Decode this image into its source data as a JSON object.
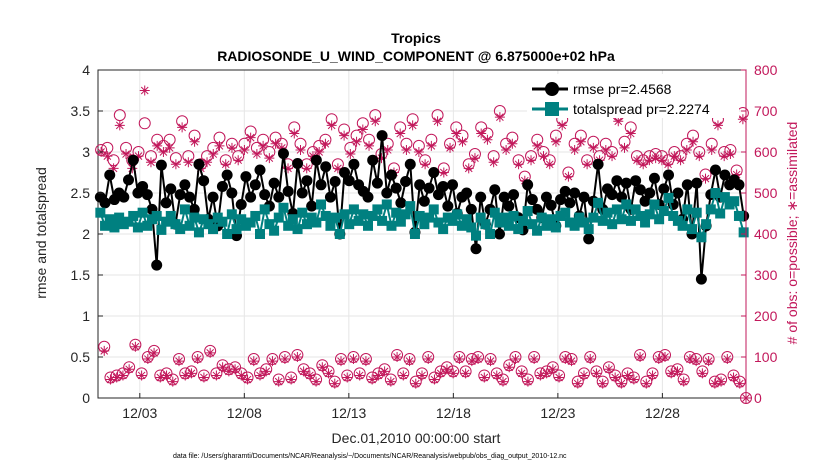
{
  "chart_data": {
    "type": "line",
    "title": "Tropics",
    "subtitle": "RADIOSONDE_U_WIND_COMPONENT @ 6.875000e+02 hPa",
    "xlabel": "Dec.01,2010 00:00:00 start",
    "ylabel_left": "rmse and totalspread",
    "ylabel_right": "# of obs: o=possible; ∗=assimilated",
    "footer": "data file: /Users/gharamti/Documents/NCAR/Reanalysis/~/Documents/NCAR/Reanalysis/webpub/obs_diag_output_2010-12.nc",
    "xlim": [
      1,
      32
    ],
    "ylim_left": [
      0,
      4
    ],
    "ylim_right": [
      0,
      800
    ],
    "x_ticks": [
      3,
      8,
      13,
      18,
      23,
      28
    ],
    "x_tick_labels": [
      "12/03",
      "12/08",
      "12/13",
      "12/18",
      "12/23",
      "12/28"
    ],
    "y_ticks_left": [
      0,
      0.5,
      1,
      1.5,
      2,
      2.5,
      3,
      3.5,
      4
    ],
    "y_tick_labels_left": [
      "0",
      "0.5",
      "1",
      "1.5",
      "2",
      "2.5",
      "3",
      "3.5",
      "4"
    ],
    "y_ticks_right": [
      0,
      100,
      200,
      300,
      400,
      500,
      600,
      700,
      800
    ],
    "y_tick_labels_right": [
      "0",
      "100",
      "200",
      "300",
      "400",
      "500",
      "600",
      "700",
      "800"
    ],
    "grid": true,
    "legend_position": "top-right",
    "colors": {
      "rmse": "#000000",
      "spread": "#008080",
      "obs": "#c2185b",
      "grid": "#e6e6e6"
    },
    "series": [
      {
        "name": "rmse pr=2.4568",
        "axis": "left",
        "style": "line-marker-circle",
        "values": [
          2.45,
          2.38,
          2.72,
          2.42,
          2.5,
          2.45,
          2.66,
          2.9,
          2.5,
          2.58,
          2.48,
          2.3,
          1.62,
          2.84,
          2.38,
          2.55,
          2.12,
          2.48,
          2.6,
          2.45,
          2.3,
          2.85,
          2.65,
          2.18,
          2.45,
          2.1,
          2.58,
          2.72,
          2.5,
          1.98,
          2.36,
          2.7,
          2.45,
          2.6,
          2.78,
          2.48,
          2.34,
          2.62,
          2.45,
          2.98,
          2.52,
          2.25,
          2.86,
          2.5,
          2.65,
          2.34,
          2.9,
          2.6,
          2.82,
          2.45,
          2.64,
          2.0,
          2.75,
          2.65,
          2.85,
          2.6,
          2.52,
          2.45,
          2.9,
          2.62,
          3.2,
          2.5,
          2.72,
          2.56,
          2.38,
          2.64,
          2.85,
          2.02,
          2.6,
          2.4,
          2.56,
          2.75,
          2.48,
          2.58,
          2.34,
          2.6,
          2.25,
          2.45,
          2.5,
          2.3,
          1.82,
          2.45,
          2.12,
          2.3,
          2.54,
          2.0,
          2.45,
          2.34,
          2.48,
          2.2,
          2.05,
          2.6,
          2.42,
          2.3,
          2.2,
          2.45,
          2.35,
          2.1,
          2.42,
          2.52,
          2.38,
          2.5,
          2.22,
          2.45,
          1.94,
          2.4,
          2.85,
          2.3,
          2.55,
          2.48,
          2.65,
          2.45,
          2.62,
          2.3,
          2.65,
          2.54,
          2.4,
          2.5,
          2.68,
          2.36,
          2.55,
          2.72,
          2.36,
          2.5,
          2.18,
          2.6,
          2.0,
          2.62,
          1.45,
          2.1,
          2.48,
          2.78,
          2.45,
          2.72,
          2.6,
          2.66,
          2.6,
          2.22
        ]
      },
      {
        "name": "totalspread pr=2.2274",
        "axis": "left",
        "style": "line-marker-square",
        "values": [
          2.26,
          2.1,
          2.18,
          2.08,
          2.2,
          2.12,
          2.15,
          2.22,
          2.08,
          2.26,
          2.1,
          2.18,
          2.22,
          2.05,
          2.15,
          2.22,
          2.12,
          2.06,
          2.3,
          2.1,
          2.2,
          2.02,
          2.18,
          2.12,
          2.06,
          2.2,
          2.15,
          2.0,
          2.24,
          2.06,
          2.18,
          2.1,
          2.14,
          2.22,
          2.0,
          2.3,
          2.12,
          2.04,
          2.2,
          2.32,
          2.1,
          2.18,
          2.06,
          2.26,
          2.12,
          2.2,
          2.14,
          2.36,
          2.22,
          2.1,
          2.2,
          2.0,
          2.24,
          2.12,
          2.3,
          2.16,
          2.24,
          2.1,
          2.22,
          2.3,
          2.16,
          2.36,
          2.1,
          2.26,
          2.15,
          2.24,
          2.34,
          2.0,
          2.22,
          2.12,
          2.2,
          2.3,
          2.14,
          2.06,
          2.2,
          2.16,
          2.24,
          2.1,
          2.18,
          2.08,
          1.98,
          2.2,
          2.12,
          2.0,
          2.26,
          2.14,
          2.2,
          2.1,
          2.22,
          2.06,
          2.16,
          2.28,
          2.12,
          2.04,
          2.2,
          2.1,
          2.18,
          2.08,
          2.22,
          2.26,
          2.14,
          2.1,
          2.2,
          2.14,
          2.06,
          2.2,
          2.38,
          2.16,
          2.26,
          2.12,
          2.3,
          2.18,
          2.36,
          2.16,
          2.3,
          2.22,
          2.14,
          2.24,
          2.36,
          2.18,
          2.28,
          2.44,
          2.22,
          2.16,
          2.1,
          2.3,
          2.06,
          2.26,
          1.96,
          2.12,
          2.3,
          2.5,
          2.25,
          2.45,
          2.36,
          2.4,
          2.22,
          2.02
        ]
      },
      {
        "name": "possible",
        "axis": "right",
        "style": "marker-circle",
        "values": [
          605,
          125,
          610,
          50,
          580,
          55,
          690,
          60,
          610,
          75,
          580,
          130,
          600,
          60,
          670,
          100,
          590,
          115,
          630,
          55,
          615,
          60,
          630,
          45,
          585,
          95,
          675,
          60,
          590,
          65,
          640,
          100,
          570,
          55,
          590,
          115,
          610,
          60,
          635,
          80,
          580,
          70,
          620,
          75,
          590,
          60,
          620,
          50,
          650,
          95,
          610,
          60,
          630,
          70,
          600,
          95,
          635,
          45,
          620,
          100,
          570,
          50,
          660,
          105,
          620,
          70,
          570,
          60,
          600,
          45,
          615,
          80,
          630,
          65,
          680,
          40,
          570,
          95,
          655,
          55,
          610,
          100,
          640,
          60,
          670,
          95,
          630,
          50,
          690,
          60,
          595,
          70,
          620,
          45,
          560,
          105,
          660,
          60,
          620,
          95,
          680,
          40,
          615,
          60,
          580,
          100,
          630,
          50,
          690,
          65,
          560,
          75,
          620,
          65,
          660,
          100,
          640,
          65,
          570,
          95,
          595,
          100,
          660,
          55,
          645,
          95,
          590,
          60,
          700,
          45,
          620,
          80,
          635,
          100,
          580,
          65,
          540,
          45,
          590,
          100,
          630,
          60,
          600,
          65,
          580,
          75,
          640,
          55,
          680,
          100,
          550,
          95,
          620,
          40,
          640,
          60,
          580,
          100,
          625,
          65,
          590,
          40,
          620,
          75,
          600,
          55,
          690,
          40,
          625,
          60,
          660,
          50,
          590,
          105,
          580,
          40,
          590,
          60,
          595,
          100,
          590,
          105,
          580,
          65,
          600,
          70,
          590,
          45,
          620,
          100,
          640,
          95,
          600,
          65,
          545,
          95,
          620,
          40,
          680,
          45,
          600,
          100,
          605,
          55,
          555,
          40,
          695,
          0
        ]
      },
      {
        "name": "assimilated",
        "axis": "right",
        "style": "marker-asterisk",
        "values": [
          600,
          115,
          590,
          45,
          560,
          50,
          665,
          55,
          595,
          70,
          560,
          125,
          590,
          55,
          750,
          95,
          575,
          110,
          615,
          50,
          600,
          55,
          610,
          40,
          570,
          90,
          660,
          55,
          575,
          60,
          625,
          95,
          560,
          50,
          575,
          110,
          595,
          55,
          615,
          75,
          570,
          65,
          610,
          70,
          580,
          55,
          605,
          45,
          635,
          90,
          595,
          55,
          615,
          65,
          585,
          90,
          620,
          40,
          610,
          95,
          560,
          45,
          645,
          100,
          605,
          65,
          560,
          55,
          590,
          40,
          600,
          75,
          620,
          60,
          665,
          35,
          560,
          90,
          640,
          50,
          595,
          95,
          625,
          55,
          655,
          90,
          615,
          45,
          675,
          55,
          585,
          65,
          605,
          40,
          550,
          100,
          645,
          55,
          605,
          90,
          665,
          35,
          600,
          55,
          570,
          95,
          615,
          45,
          675,
          60,
          550,
          70,
          610,
          60,
          645,
          95,
          625,
          60,
          560,
          90,
          585,
          95,
          645,
          50,
          630,
          90,
          575,
          55,
          685,
          40,
          605,
          75,
          620,
          95,
          570,
          60,
          530,
          40,
          580,
          95,
          615,
          55,
          590,
          60,
          570,
          70,
          625,
          50,
          665,
          95,
          540,
          90,
          605,
          35,
          625,
          55,
          570,
          95,
          610,
          60,
          580,
          35,
          605,
          70,
          590,
          50,
          675,
          35,
          610,
          55,
          645,
          45,
          580,
          100,
          570,
          35,
          580,
          55,
          585,
          95,
          580,
          100,
          570,
          60,
          590,
          65,
          580,
          40,
          605,
          95,
          625,
          90,
          590,
          60,
          535,
          90,
          605,
          35,
          665,
          40,
          590,
          95,
          595,
          50,
          545,
          35,
          680,
          0
        ]
      }
    ]
  }
}
